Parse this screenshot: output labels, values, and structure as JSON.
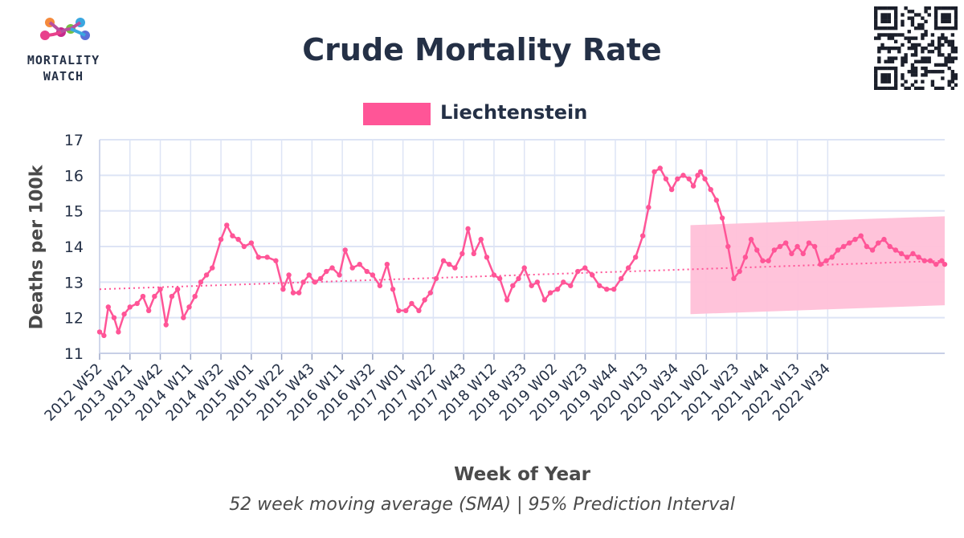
{
  "header": {
    "title": "Crude Mortality Rate",
    "logo_line1": "MORTALITY",
    "logo_line2": "WATCH",
    "subtitle": "52 week moving average (SMA) | 95% Prediction Interval"
  },
  "legend": {
    "label": "Liechtenstein"
  },
  "colors": {
    "series": "#ff5597",
    "band": "#ffc0d8",
    "text": "#243046",
    "grid": "#dde4f5"
  },
  "chart_data": {
    "type": "line",
    "title": "Crude Mortality Rate",
    "subtitle": "52 week moving average (SMA) | 95% Prediction Interval",
    "xlabel": "Week of Year",
    "ylabel": "Deaths per 100k",
    "ylim": [
      11,
      17
    ],
    "y_ticks": [
      11,
      12,
      13,
      14,
      15,
      16,
      17
    ],
    "x_tick_labels": [
      "2012 W52",
      "2013 W21",
      "2013 W42",
      "2014 W11",
      "2014 W32",
      "2015 W01",
      "2015 W22",
      "2015 W43",
      "2016 W11",
      "2016 W32",
      "2017 W01",
      "2017 W22",
      "2017 W43",
      "2018 W12",
      "2018 W33",
      "2019 W02",
      "2019 W23",
      "2019 W44",
      "2020 W13",
      "2020 W34",
      "2021 W02",
      "2021 W23",
      "2021 W44",
      "2022 W13",
      "2022 W34"
    ],
    "x_axis_note": "x values are weeks counted from 2012 W52 (each tick label is 21 weeks apart)",
    "grid": true,
    "legend_position": "top-center",
    "series": [
      {
        "name": "Liechtenstein",
        "x": [
          0,
          3,
          6,
          10,
          13,
          17,
          21,
          26,
          30,
          34,
          38,
          42,
          46,
          50,
          54,
          58,
          62,
          66,
          70,
          74,
          78,
          84,
          88,
          92,
          96,
          100,
          105,
          110,
          116,
          122,
          127,
          131,
          134,
          138,
          141,
          145,
          149,
          153,
          157,
          161,
          166,
          170,
          175,
          180,
          185,
          189,
          194,
          199,
          203,
          207,
          212,
          216,
          221,
          225,
          229,
          233,
          238,
          242,
          246,
          251,
          255,
          259,
          264,
          268,
          273,
          277,
          282,
          286,
          290,
          294,
          299,
          303,
          308,
          312,
          317,
          321,
          326,
          331,
          336,
          341,
          346,
          351,
          356,
          361,
          366,
          371,
          376,
          380,
          384,
          388,
          392,
          396,
          400,
          404,
          408,
          411,
          414,
          416,
          419,
          423,
          427,
          431,
          435,
          439,
          443,
          447,
          451,
          455,
          459,
          463,
          467,
          471,
          475,
          479,
          483,
          487,
          491,
          495,
          499,
          503,
          507,
          511,
          515,
          519,
          523,
          527,
          531,
          535,
          539,
          543,
          547,
          551,
          555,
          559,
          563,
          567,
          571,
          575,
          579,
          583,
          585
        ],
        "values": [
          11.6,
          11.5,
          12.3,
          12.0,
          11.6,
          12.1,
          12.3,
          12.4,
          12.6,
          12.2,
          12.6,
          12.8,
          11.8,
          12.6,
          12.8,
          12.0,
          12.3,
          12.6,
          13.0,
          13.2,
          13.4,
          14.2,
          14.6,
          14.3,
          14.2,
          14.0,
          14.1,
          13.7,
          13.7,
          13.6,
          12.8,
          13.2,
          12.7,
          12.7,
          13.0,
          13.2,
          13.0,
          13.1,
          13.3,
          13.4,
          13.2,
          13.9,
          13.4,
          13.5,
          13.3,
          13.2,
          12.9,
          13.5,
          12.8,
          12.2,
          12.2,
          12.4,
          12.2,
          12.5,
          12.7,
          13.1,
          13.6,
          13.5,
          13.4,
          13.8,
          14.5,
          13.8,
          14.2,
          13.7,
          13.2,
          13.1,
          12.5,
          12.9,
          13.1,
          13.4,
          12.9,
          13.0,
          12.5,
          12.7,
          12.8,
          13.0,
          12.9,
          13.3,
          13.4,
          13.2,
          12.9,
          12.8,
          12.8,
          13.1,
          13.4,
          13.7,
          14.3,
          15.1,
          16.1,
          16.2,
          15.9,
          15.6,
          15.9,
          16.0,
          15.9,
          15.7,
          16.0,
          16.1,
          15.9,
          15.6,
          15.3,
          14.8,
          14.0,
          13.1,
          13.3,
          13.7,
          14.2,
          13.9,
          13.6,
          13.6,
          13.9,
          14.0,
          14.1,
          13.8,
          14.0,
          13.8,
          14.1,
          14.0,
          13.5,
          13.6,
          13.7,
          13.9,
          14.0,
          14.1,
          14.2,
          14.3,
          14.0,
          13.9,
          14.1,
          14.2,
          14.0,
          13.9,
          13.8,
          13.7,
          13.8,
          13.7,
          13.6,
          13.6,
          13.5,
          13.6,
          13.5
        ]
      },
      {
        "name": "Trend",
        "style": "dotted",
        "x": [
          0,
          585
        ],
        "values": [
          12.8,
          13.6
        ]
      }
    ],
    "prediction_interval": {
      "x": [
        409,
        585
      ],
      "lower": [
        12.1,
        12.35
      ],
      "upper": [
        14.6,
        14.85
      ]
    }
  }
}
